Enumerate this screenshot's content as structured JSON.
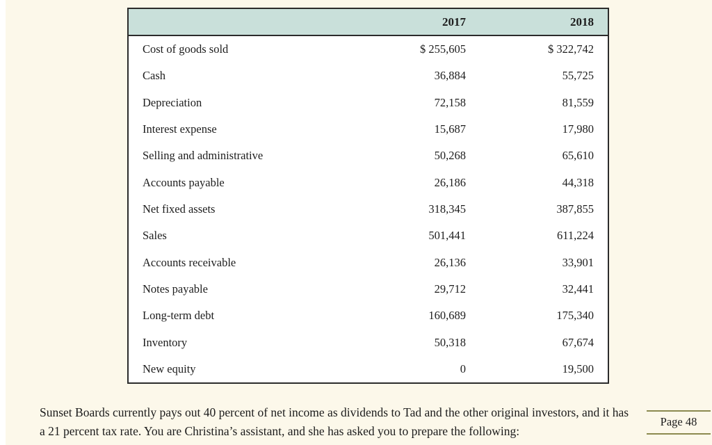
{
  "table": {
    "columns": [
      "2017",
      "2018"
    ],
    "rows": [
      {
        "label": "Cost of goods sold",
        "v2017": "$ 255,605",
        "v2018": "$ 322,742"
      },
      {
        "label": "Cash",
        "v2017": "36,884",
        "v2018": "55,725"
      },
      {
        "label": "Depreciation",
        "v2017": "72,158",
        "v2018": "81,559"
      },
      {
        "label": "Interest expense",
        "v2017": "15,687",
        "v2018": "17,980"
      },
      {
        "label": "Selling and administrative",
        "v2017": "50,268",
        "v2018": "65,610"
      },
      {
        "label": "Accounts payable",
        "v2017": "26,186",
        "v2018": "44,318"
      },
      {
        "label": "Net fixed assets",
        "v2017": "318,345",
        "v2018": "387,855"
      },
      {
        "label": "Sales",
        "v2017": "501,441",
        "v2018": "611,224"
      },
      {
        "label": "Accounts receivable",
        "v2017": "26,136",
        "v2018": "33,901"
      },
      {
        "label": "Notes payable",
        "v2017": "29,712",
        "v2018": "32,441"
      },
      {
        "label": "Long-term debt",
        "v2017": "160,689",
        "v2018": "175,340"
      },
      {
        "label": "Inventory",
        "v2017": "50,318",
        "v2018": "67,674"
      },
      {
        "label": "New equity",
        "v2017": "0",
        "v2018": "19,500"
      }
    ]
  },
  "paragraph": {
    "lines": [
      "Sunset Boards currently pays out 40 percent of net income as dividends to Tad and the other original investors, and it has",
      "a 21 percent tax rate. You are Christina’s assistant, and she has asked you to prepare the following:"
    ]
  },
  "page_badge": {
    "label": "Page 48"
  },
  "colors": {
    "page_background": "#fcf8ea",
    "table_header": "#c9e0da",
    "table_border": "#2b2b2b",
    "badge_rule": "#8b8a4f",
    "text": "#1d1d1d"
  }
}
